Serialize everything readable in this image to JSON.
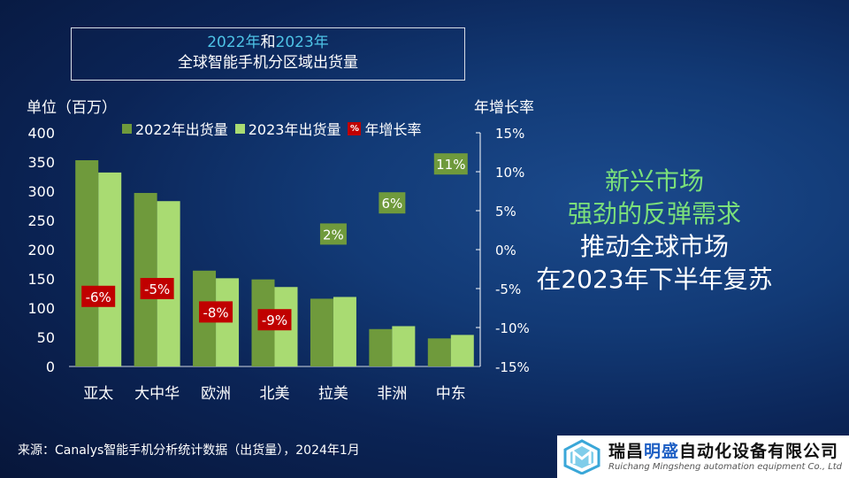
{
  "title": {
    "year_a": "2022年",
    "conj": "和",
    "year_b": "2023年",
    "line2": "全球智能手机分区域出货量"
  },
  "left_axis_label": "单位（百万）",
  "right_axis_label": "年增长率",
  "legend": {
    "series_a": "2022年出货量",
    "series_b": "2023年出货量",
    "pct_symbol": "%",
    "rate": "年增长率"
  },
  "headline": {
    "line1": "新兴市场",
    "line2": "强劲的反弹需求",
    "line3": "推动全球市场",
    "line4": "在2023年下半年复苏"
  },
  "source": "来源：Canalys智能手机分析统计数据（出货量），2024年1月",
  "logo": {
    "cn_a": "瑞昌",
    "cn_b": "明盛",
    "cn_c": "自动化设备有限公司",
    "en": "Ruichang Mingsheng automation equipment Co., Ltd"
  },
  "colors": {
    "series_a": "#6f9a3c",
    "series_b": "#a9db72",
    "neg_rate": "#c00000",
    "pos_rate": "#6f9a3c"
  },
  "chart_data": {
    "type": "bar",
    "categories": [
      "亚太",
      "大中华",
      "欧洲",
      "北美",
      "拉美",
      "非洲",
      "中东"
    ],
    "series": [
      {
        "name": "2022年出货量",
        "values": [
          353,
          297,
          164,
          149,
          116,
          64,
          48
        ]
      },
      {
        "name": "2023年出货量",
        "values": [
          332,
          283,
          151,
          136,
          119,
          69,
          54
        ]
      }
    ],
    "growth_rate": {
      "name": "年增长率",
      "values": [
        -6,
        -5,
        -8,
        -9,
        2,
        6,
        11
      ],
      "labels": [
        "-6%",
        "-5%",
        "-8%",
        "-9%",
        "2%",
        "6%",
        "11%"
      ]
    },
    "ylim": [
      0,
      400
    ],
    "yticks": [
      0,
      50,
      100,
      150,
      200,
      250,
      300,
      350,
      400
    ],
    "y2lim": [
      -15,
      15
    ],
    "y2ticks": [
      "-15%",
      "-10%",
      "-5%",
      "0%",
      "5%",
      "10%",
      "15%"
    ],
    "ylabel": "单位（百万）",
    "y2label": "年增长率",
    "legend_position": "top"
  }
}
